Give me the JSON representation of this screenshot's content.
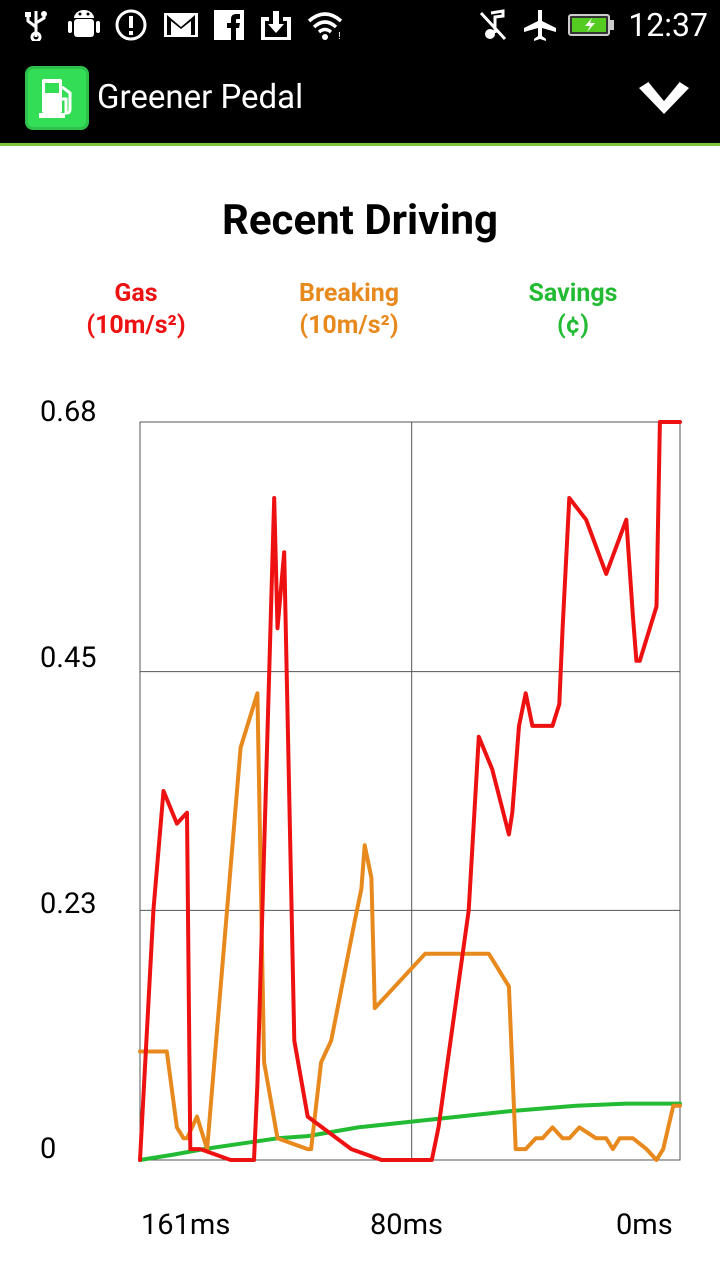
{
  "status_bar": {
    "time": "12:37",
    "icons": [
      "usb-icon",
      "debug-icon",
      "alert-icon",
      "gmail-icon",
      "facebook-icon",
      "download-icon",
      "wifi-icon",
      "mute-icon",
      "airplane-icon",
      "battery-icon"
    ]
  },
  "action_bar": {
    "title": "Greener Pedal",
    "app_icon": "fuel-pump-icon",
    "overflow_icon": "chevron-down-icon"
  },
  "chart_data": {
    "type": "line",
    "title": "Recent Driving",
    "y_ticks": [
      "0.68",
      "0.45",
      "0.23",
      "0"
    ],
    "x_ticks": [
      "161ms",
      "80ms",
      "0ms"
    ],
    "ylim": [
      0,
      0.68
    ],
    "xlim": [
      161,
      0
    ],
    "grid": true,
    "series": [
      {
        "name": "Gas",
        "unit": "(10m/s²)",
        "color": "#ee1111",
        "x": [
          161,
          157,
          154,
          150,
          147,
          146,
          143,
          134,
          127,
          126,
          121,
          120,
          118,
          115,
          111,
          98,
          89,
          74,
          72,
          63,
          60,
          56,
          51,
          50,
          48,
          46,
          44,
          38,
          36,
          35,
          33,
          28,
          22,
          16,
          14,
          13,
          12,
          7,
          6,
          5,
          2,
          0
        ],
        "y": [
          0,
          0.23,
          0.34,
          0.31,
          0.32,
          0.01,
          0.01,
          0,
          0,
          0.07,
          0.61,
          0.49,
          0.56,
          0.11,
          0.04,
          0.01,
          0,
          0,
          0.03,
          0.23,
          0.39,
          0.36,
          0.3,
          0.32,
          0.4,
          0.43,
          0.4,
          0.4,
          0.42,
          0.49,
          0.61,
          0.59,
          0.54,
          0.59,
          0.5,
          0.46,
          0.46,
          0.51,
          0.68,
          0.68,
          0.68,
          0.68
        ]
      },
      {
        "name": "Breaking",
        "unit": "(10m/s²)",
        "color": "#e8891e",
        "x": [
          161,
          154,
          153,
          150,
          148,
          147,
          144,
          141,
          131,
          126,
          124,
          120,
          111,
          110,
          107,
          104,
          97,
          95,
          94,
          92,
          91,
          76,
          57,
          55,
          51,
          49,
          47,
          46,
          43,
          41,
          38,
          35,
          33,
          30,
          25,
          22,
          20,
          18,
          14,
          10,
          7,
          5,
          2,
          0
        ],
        "y": [
          0.1,
          0.1,
          0.1,
          0.03,
          0.02,
          0.02,
          0.04,
          0.01,
          0.38,
          0.43,
          0.09,
          0.02,
          0.01,
          0.01,
          0.09,
          0.11,
          0.22,
          0.25,
          0.29,
          0.26,
          0.14,
          0.19,
          0.19,
          0.18,
          0.16,
          0.01,
          0.01,
          0.01,
          0.02,
          0.02,
          0.03,
          0.02,
          0.02,
          0.03,
          0.02,
          0.02,
          0.01,
          0.02,
          0.02,
          0.01,
          0.0,
          0.01,
          0.05,
          0.05
        ]
      },
      {
        "name": "Savings",
        "unit": "(¢)",
        "color": "#22bb33",
        "x": [
          161,
          151,
          142,
          131,
          120,
          111,
          96,
          81,
          66,
          51,
          31,
          16,
          0
        ],
        "y": [
          0,
          0.005,
          0.01,
          0.015,
          0.02,
          0.022,
          0.03,
          0.035,
          0.04,
          0.045,
          0.05,
          0.052,
          0.052
        ]
      }
    ]
  }
}
